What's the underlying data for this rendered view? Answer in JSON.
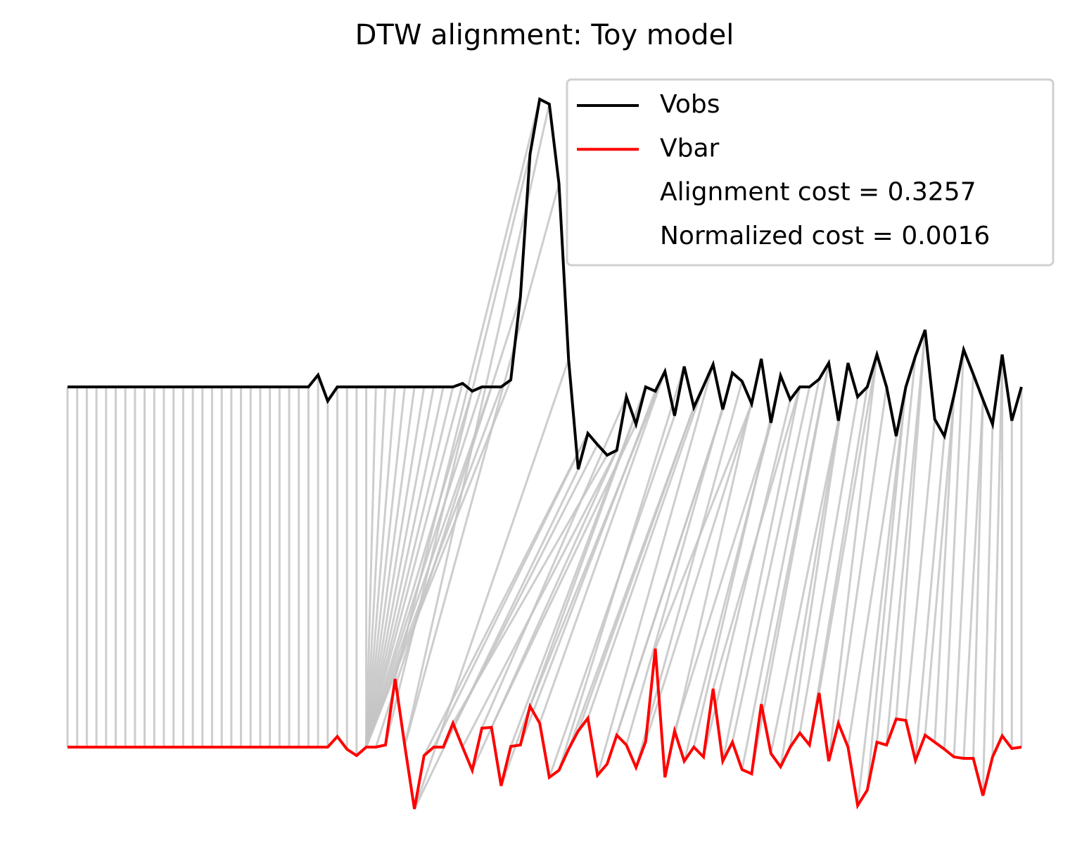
{
  "chart_data": {
    "type": "dtw",
    "title": "DTW alignment: Toy model",
    "x": [
      0,
      1,
      2,
      3,
      4,
      5,
      6,
      7,
      8,
      9,
      10,
      11,
      12,
      13,
      14,
      15,
      16,
      17,
      18,
      19,
      20,
      21,
      22,
      23,
      24,
      25,
      26,
      27,
      28,
      29,
      30,
      31,
      32,
      33,
      34,
      35,
      36,
      37,
      38,
      39,
      40,
      41,
      42,
      43,
      44,
      45,
      46,
      47,
      48,
      49,
      50,
      51,
      52,
      53,
      54,
      55,
      56,
      57,
      58,
      59,
      60,
      61,
      62,
      63,
      64,
      65,
      66,
      67,
      68,
      69,
      70,
      71,
      72,
      73,
      74,
      75,
      76,
      77,
      78,
      79,
      80,
      81,
      82,
      83,
      84,
      85,
      86,
      87,
      88,
      89,
      90,
      91,
      92,
      93,
      94,
      95,
      96,
      97,
      98,
      99
    ],
    "series": [
      {
        "name": "Vobs",
        "color": "#000000",
        "values": [
          0,
          0,
          0,
          0,
          0,
          0,
          0,
          0,
          0,
          0,
          0,
          0,
          0,
          0,
          0,
          0,
          0,
          0,
          0,
          0,
          0,
          0,
          0,
          0,
          0,
          0,
          0.17,
          -0.2,
          0,
          0,
          0,
          0,
          0,
          0,
          0,
          0,
          0,
          0,
          0,
          0,
          0,
          0.05,
          -0.06,
          0,
          0,
          0,
          0.1,
          1.28,
          3.31,
          4.09,
          4.02,
          2.89,
          0.39,
          -1.17,
          -0.66,
          -0.82,
          -0.97,
          -0.9,
          -0.14,
          -0.53,
          0,
          -0.06,
          0.22,
          -0.41,
          0.29,
          -0.29,
          0.01,
          0.32,
          -0.32,
          0.2,
          0.08,
          -0.24,
          0.4,
          -0.51,
          0.16,
          -0.18,
          0,
          0,
          0.11,
          0.34,
          -0.48,
          0.34,
          -0.14,
          0,
          0.46,
          0,
          -0.7,
          0,
          0.44,
          0.81,
          -0.46,
          -0.7,
          -0.12,
          0.53,
          0.18,
          -0.18,
          -0.53,
          0.46,
          -0.48,
          0
        ]
      },
      {
        "name": "Vbar",
        "color": "#ff0000",
        "values": [
          -5.12,
          -5.12,
          -5.12,
          -5.12,
          -5.12,
          -5.12,
          -5.12,
          -5.12,
          -5.12,
          -5.12,
          -5.12,
          -5.12,
          -5.12,
          -5.12,
          -5.12,
          -5.12,
          -5.12,
          -5.12,
          -5.12,
          -5.12,
          -5.12,
          -5.12,
          -5.12,
          -5.12,
          -5.12,
          -5.12,
          -5.12,
          -5.12,
          -4.97,
          -5.15,
          -5.24,
          -5.12,
          -5.12,
          -5.09,
          -4.15,
          -5.1,
          -6.0,
          -5.24,
          -5.12,
          -5.12,
          -4.78,
          -5.12,
          -5.45,
          -4.85,
          -4.84,
          -5.67,
          -5.11,
          -5.09,
          -4.54,
          -4.78,
          -5.55,
          -5.45,
          -5.15,
          -4.89,
          -4.71,
          -5.52,
          -5.36,
          -4.95,
          -5.09,
          -5.41,
          -5.04,
          -3.72,
          -5.55,
          -4.89,
          -5.32,
          -5.12,
          -5.26,
          -4.29,
          -5.32,
          -5.05,
          -5.44,
          -5.5,
          -4.51,
          -5.21,
          -5.4,
          -5.12,
          -4.92,
          -5.09,
          -4.35,
          -5.32,
          -4.78,
          -5.12,
          -5.95,
          -5.73,
          -5.05,
          -5.09,
          -4.72,
          -4.74,
          -5.31,
          -4.95,
          -5.05,
          -5.15,
          -5.26,
          -5.28,
          -5.28,
          -5.81,
          -5.26,
          -4.96,
          -5.14,
          -5.12
        ]
      }
    ],
    "alignment": [
      [
        0,
        0
      ],
      [
        1,
        1
      ],
      [
        2,
        2
      ],
      [
        3,
        3
      ],
      [
        4,
        4
      ],
      [
        5,
        5
      ],
      [
        6,
        6
      ],
      [
        7,
        7
      ],
      [
        8,
        8
      ],
      [
        9,
        9
      ],
      [
        10,
        10
      ],
      [
        11,
        11
      ],
      [
        12,
        12
      ],
      [
        13,
        13
      ],
      [
        14,
        14
      ],
      [
        15,
        15
      ],
      [
        16,
        16
      ],
      [
        17,
        17
      ],
      [
        18,
        18
      ],
      [
        19,
        19
      ],
      [
        20,
        20
      ],
      [
        21,
        21
      ],
      [
        22,
        22
      ],
      [
        23,
        23
      ],
      [
        24,
        24
      ],
      [
        25,
        25
      ],
      [
        26,
        26
      ],
      [
        27,
        27
      ],
      [
        28,
        28
      ],
      [
        29,
        29
      ],
      [
        30,
        30
      ],
      [
        31,
        31
      ],
      [
        32,
        31
      ],
      [
        33,
        31
      ],
      [
        34,
        31
      ],
      [
        35,
        31
      ],
      [
        36,
        31
      ],
      [
        37,
        31
      ],
      [
        38,
        31
      ],
      [
        39,
        31
      ],
      [
        40,
        31
      ],
      [
        41,
        31
      ],
      [
        42,
        31
      ],
      [
        43,
        31
      ],
      [
        44,
        31
      ],
      [
        45,
        31
      ],
      [
        46,
        31
      ],
      [
        47,
        32
      ],
      [
        48,
        33
      ],
      [
        49,
        34
      ],
      [
        50,
        35
      ],
      [
        51,
        35
      ],
      [
        52,
        36
      ],
      [
        53,
        36
      ],
      [
        54,
        37
      ],
      [
        54,
        38
      ],
      [
        55,
        39
      ],
      [
        56,
        40
      ],
      [
        57,
        41
      ],
      [
        57,
        42
      ],
      [
        58,
        43
      ],
      [
        59,
        44
      ],
      [
        60,
        45
      ],
      [
        60,
        46
      ],
      [
        61,
        47
      ],
      [
        62,
        48
      ],
      [
        62,
        49
      ],
      [
        63,
        50
      ],
      [
        64,
        51
      ],
      [
        65,
        52
      ],
      [
        65,
        53
      ],
      [
        66,
        54
      ],
      [
        67,
        55
      ],
      [
        68,
        56
      ],
      [
        68,
        57
      ],
      [
        69,
        58
      ],
      [
        70,
        59
      ],
      [
        71,
        60
      ],
      [
        71,
        61
      ],
      [
        72,
        62
      ],
      [
        73,
        63
      ],
      [
        73,
        64
      ],
      [
        74,
        65
      ],
      [
        75,
        66
      ],
      [
        76,
        67
      ],
      [
        76,
        68
      ],
      [
        77,
        69
      ],
      [
        78,
        70
      ],
      [
        79,
        71
      ],
      [
        79,
        72
      ],
      [
        80,
        73
      ],
      [
        81,
        74
      ],
      [
        81,
        75
      ],
      [
        82,
        76
      ],
      [
        83,
        77
      ],
      [
        84,
        78
      ],
      [
        84,
        79
      ],
      [
        85,
        80
      ],
      [
        86,
        81
      ],
      [
        87,
        82
      ],
      [
        87,
        83
      ],
      [
        88,
        84
      ],
      [
        89,
        85
      ],
      [
        89,
        86
      ],
      [
        90,
        87
      ],
      [
        91,
        88
      ],
      [
        92,
        89
      ],
      [
        92,
        90
      ],
      [
        93,
        91
      ],
      [
        94,
        92
      ],
      [
        95,
        93
      ],
      [
        95,
        94
      ],
      [
        96,
        95
      ],
      [
        97,
        96
      ],
      [
        97,
        97
      ],
      [
        98,
        98
      ],
      [
        99,
        99
      ]
    ],
    "alignment_color": "#c4c4c4",
    "legend_notes": [
      "Alignment cost = 0.3257",
      "Normalized cost = 0.0016"
    ],
    "legend": "upper right",
    "xlim": [
      0,
      99
    ],
    "ylim": [
      -6.2,
      4.3
    ]
  }
}
